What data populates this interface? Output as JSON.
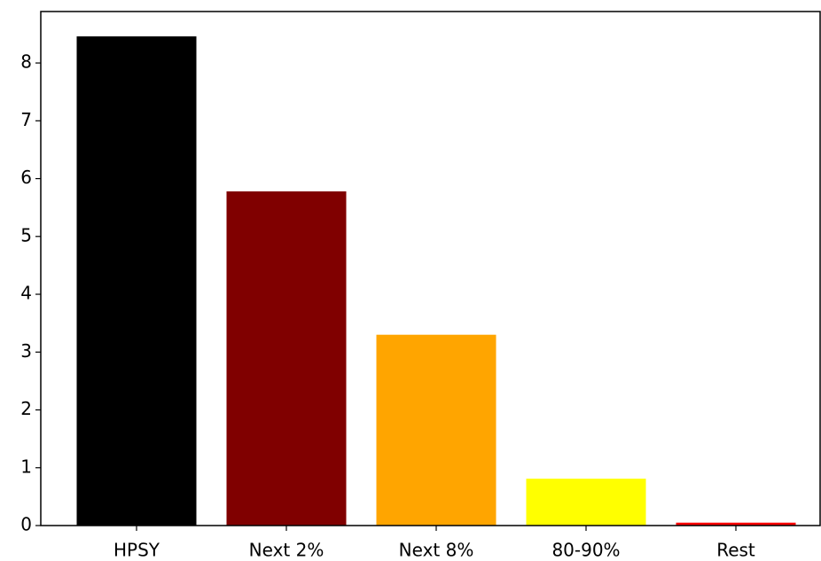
{
  "chart_data": {
    "type": "bar",
    "categories": [
      "HPSY",
      "Next 2%",
      "Next 8%",
      "80-90%",
      "Rest"
    ],
    "values": [
      8.46,
      5.78,
      3.3,
      0.81,
      0.05
    ],
    "colors": [
      "#000000",
      "#800000",
      "#ffa500",
      "#ffff00",
      "#ff0000"
    ],
    "ylim": [
      0,
      8.89
    ],
    "yticks": [
      0,
      1,
      2,
      3,
      4,
      5,
      6,
      7,
      8
    ],
    "grid": false
  }
}
